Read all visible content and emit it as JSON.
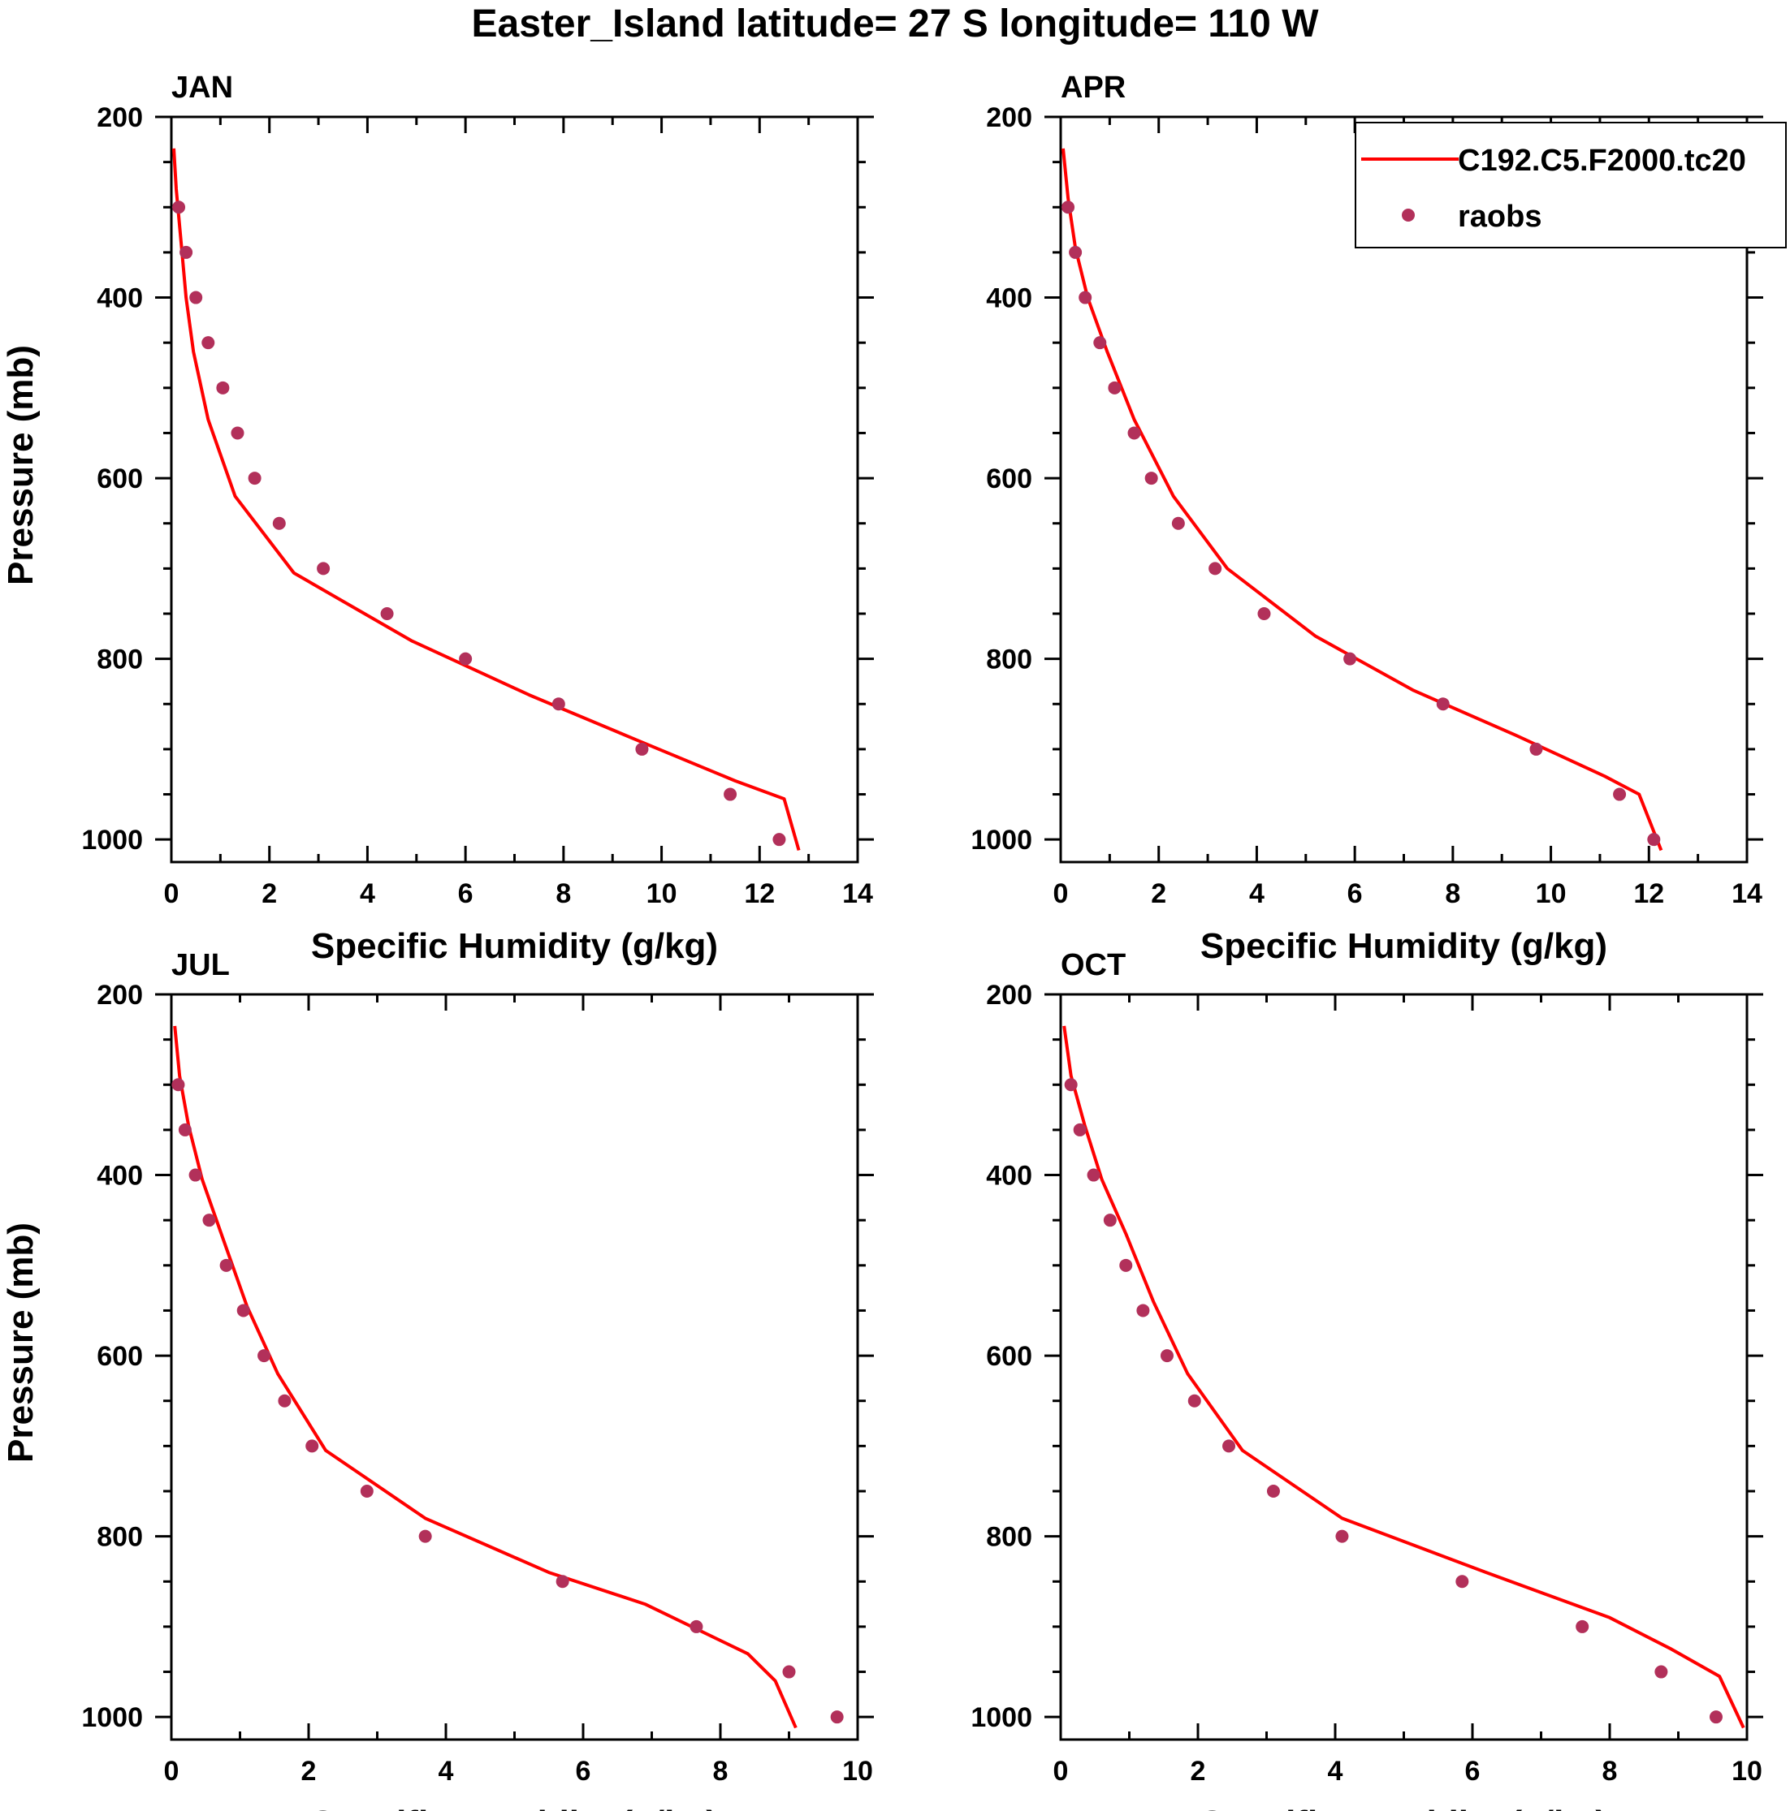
{
  "title": "Easter_Island  latitude= 27 S longitude= 110 W",
  "colors": {
    "model": "#ff0000",
    "obs": "#b2305a",
    "axis": "#000000"
  },
  "legend": {
    "location": "top-right of APR panel",
    "model_label": "C192.C5.F2000.tc20",
    "obs_label": "raobs"
  },
  "chart_data": [
    {
      "type": "line",
      "panel": "JAN",
      "title": "JAN",
      "xlabel": "Specific Humidity (g/kg)",
      "ylabel": "Pressure (mb)",
      "xlim": [
        0,
        14
      ],
      "ylim": [
        1025,
        200
      ],
      "xticks": [
        0,
        2,
        4,
        6,
        8,
        10,
        12,
        14
      ],
      "yticks": [
        200,
        400,
        600,
        800,
        1000
      ],
      "series": [
        {
          "name": "C192.C5.F2000.tc20",
          "style": "line",
          "x": [
            0.05,
            0.1,
            0.2,
            0.3,
            0.45,
            0.75,
            1.3,
            2.5,
            4.9,
            7.3,
            9.5,
            11.5,
            12.5,
            12.8
          ],
          "y": [
            235,
            280,
            340,
            400,
            460,
            535,
            620,
            705,
            780,
            840,
            890,
            935,
            955,
            1012
          ]
        },
        {
          "name": "raobs",
          "style": "scatter",
          "x": [
            0.15,
            0.3,
            0.5,
            0.75,
            1.05,
            1.35,
            1.7,
            2.2,
            3.1,
            4.4,
            6.0,
            7.9,
            9.6,
            11.4,
            12.4
          ],
          "y": [
            300,
            350,
            400,
            450,
            500,
            550,
            600,
            650,
            700,
            750,
            800,
            850,
            900,
            950,
            1000
          ]
        }
      ]
    },
    {
      "type": "line",
      "panel": "APR",
      "title": "APR",
      "xlabel": "Specific Humidity (g/kg)",
      "ylabel": "",
      "xlim": [
        0,
        14
      ],
      "ylim": [
        1025,
        200
      ],
      "xticks": [
        0,
        2,
        4,
        6,
        8,
        10,
        12,
        14
      ],
      "yticks": [
        200,
        400,
        600,
        800,
        1000
      ],
      "series": [
        {
          "name": "C192.C5.F2000.tc20",
          "style": "line",
          "x": [
            0.05,
            0.15,
            0.3,
            0.55,
            0.95,
            1.5,
            2.3,
            3.4,
            5.2,
            7.2,
            9.3,
            11.1,
            11.8,
            12.25
          ],
          "y": [
            235,
            290,
            345,
            400,
            460,
            535,
            620,
            700,
            775,
            835,
            885,
            930,
            950,
            1012
          ]
        },
        {
          "name": "raobs",
          "style": "scatter",
          "x": [
            0.15,
            0.3,
            0.5,
            0.8,
            1.1,
            1.5,
            1.85,
            2.4,
            3.15,
            4.15,
            5.9,
            7.8,
            9.7,
            11.4,
            12.1
          ],
          "y": [
            300,
            350,
            400,
            450,
            500,
            550,
            600,
            650,
            700,
            750,
            800,
            850,
            900,
            950,
            1000
          ]
        }
      ]
    },
    {
      "type": "line",
      "panel": "JUL",
      "title": "JUL",
      "xlabel": "Specific Humidity (g/kg)",
      "ylabel": "Pressure (mb)",
      "xlim": [
        0,
        10
      ],
      "ylim": [
        1025,
        200
      ],
      "xticks": [
        0,
        2,
        4,
        6,
        8,
        10
      ],
      "yticks": [
        200,
        400,
        600,
        800,
        1000
      ],
      "series": [
        {
          "name": "C192.C5.F2000.tc20",
          "style": "line",
          "x": [
            0.05,
            0.12,
            0.25,
            0.45,
            0.75,
            1.1,
            1.55,
            2.25,
            3.7,
            5.5,
            6.9,
            8.4,
            8.8,
            9.1
          ],
          "y": [
            235,
            290,
            345,
            405,
            470,
            545,
            620,
            705,
            780,
            840,
            875,
            930,
            960,
            1012
          ]
        },
        {
          "name": "raobs",
          "style": "scatter",
          "x": [
            0.1,
            0.2,
            0.35,
            0.55,
            0.8,
            1.05,
            1.35,
            1.65,
            2.05,
            2.85,
            3.7,
            5.7,
            7.65,
            9.0,
            9.7
          ],
          "y": [
            300,
            350,
            400,
            450,
            500,
            550,
            600,
            650,
            700,
            750,
            800,
            850,
            900,
            950,
            1000
          ]
        }
      ]
    },
    {
      "type": "line",
      "panel": "OCT",
      "title": "OCT",
      "xlabel": "Specific Humidity (g/kg)",
      "ylabel": "",
      "xlim": [
        0,
        10
      ],
      "ylim": [
        1025,
        200
      ],
      "xticks": [
        0,
        2,
        4,
        6,
        8,
        10
      ],
      "yticks": [
        200,
        400,
        600,
        800,
        1000
      ],
      "series": [
        {
          "name": "C192.C5.F2000.tc20",
          "style": "line",
          "x": [
            0.05,
            0.15,
            0.35,
            0.6,
            0.95,
            1.35,
            1.85,
            2.65,
            4.1,
            6.2,
            8.0,
            8.9,
            9.6,
            9.95
          ],
          "y": [
            235,
            290,
            345,
            405,
            465,
            540,
            620,
            705,
            780,
            840,
            890,
            925,
            955,
            1012
          ]
        },
        {
          "name": "raobs",
          "style": "scatter",
          "x": [
            0.15,
            0.28,
            0.48,
            0.72,
            0.95,
            1.2,
            1.55,
            1.95,
            2.45,
            3.1,
            4.1,
            5.85,
            7.6,
            8.75,
            9.55
          ],
          "y": [
            300,
            350,
            400,
            450,
            500,
            550,
            600,
            650,
            700,
            750,
            800,
            850,
            900,
            950,
            1000
          ]
        }
      ]
    }
  ]
}
